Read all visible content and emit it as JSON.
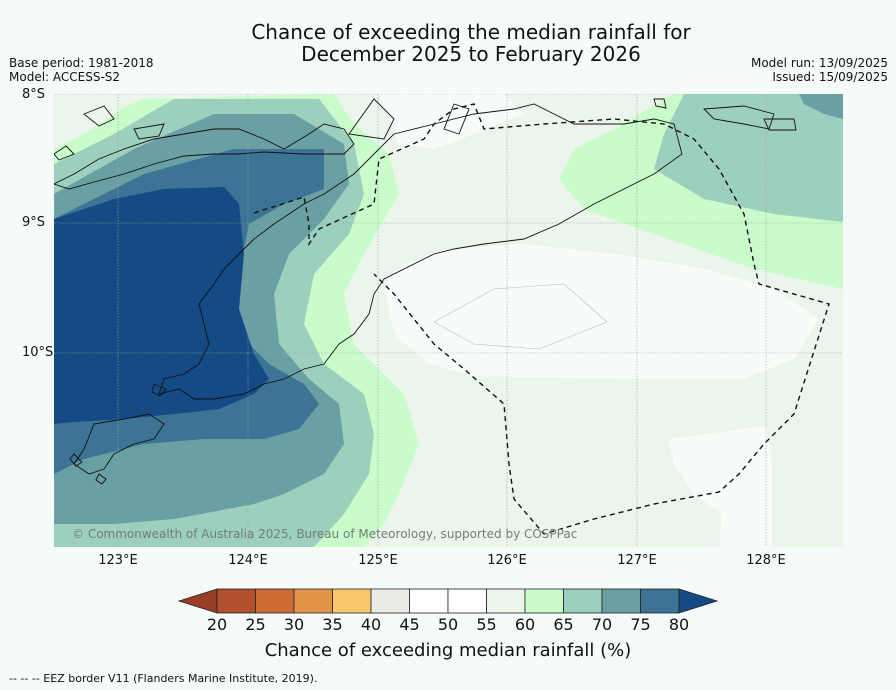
{
  "title_line1": "Chance of exceeding the median rainfall for",
  "title_line2": "December 2025 to February 2026",
  "meta": {
    "base_period": "Base period: 1981-2018",
    "model": "Model: ACCESS-S2",
    "model_run": "Model run: 13/09/2025",
    "issued": "Issued: 15/09/2025"
  },
  "axes": {
    "lat_labels": [
      "8°S",
      "9°S",
      "10°S"
    ],
    "lon_labels": [
      "123°E",
      "124°E",
      "125°E",
      "126°E",
      "127°E",
      "128°E"
    ]
  },
  "copyright": "© Commonwealth of Australia 2025, Bureau of Meteorology, supported by COSPPac",
  "colorbar": {
    "ticks": [
      "20",
      "25",
      "30",
      "35",
      "40",
      "45",
      "50",
      "55",
      "60",
      "65",
      "70",
      "75",
      "80"
    ],
    "colors": [
      "#b24f2d",
      "#cd6c35",
      "#e09549",
      "#fcc66a",
      "#ebebe7",
      "#ffffff",
      "#ffffff",
      "#ecf5ec",
      "#c9fbcb",
      "#9ccfbc",
      "#6a9fa4",
      "#3d7394"
    ],
    "low_arrow_color": "#993d26",
    "high_arrow_color": "#144b85",
    "label": "Chance of exceeding median rainfall (%)"
  },
  "legend_footer": "--  --  -- EEZ border V11 (Flanders Marine Institute, 2019).",
  "map_colors": {
    "c55": "#ecf5ec",
    "c60": "#c9fbcb",
    "c65": "#9ccfbc",
    "c70": "#6a9fa4",
    "c75": "#3d7394",
    "c80": "#144b85",
    "c50": "#f7fcf9"
  }
}
